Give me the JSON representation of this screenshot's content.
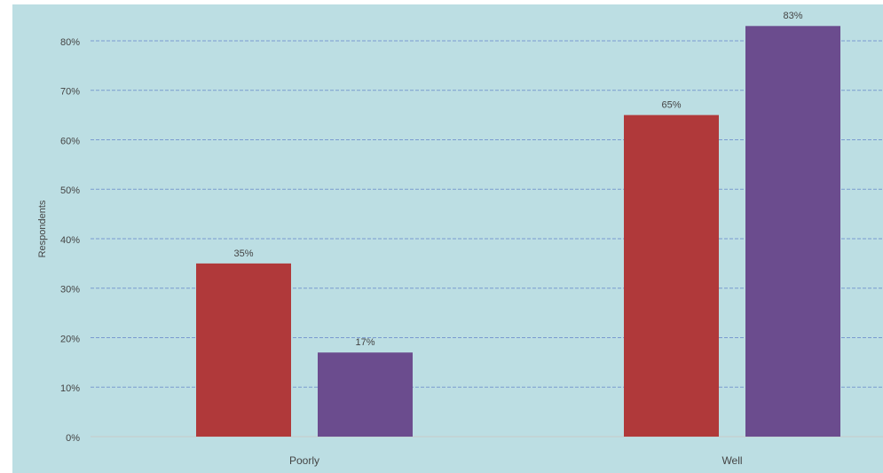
{
  "chart_data": {
    "type": "bar",
    "y_label": "Respondents",
    "categories": [
      "Poorly",
      "Well"
    ],
    "series": [
      {
        "color": "#b0393a",
        "values": [
          35,
          65
        ],
        "value_labels": [
          "35%",
          "65%"
        ]
      },
      {
        "color": "#6b4c8e",
        "values": [
          17,
          83
        ],
        "value_labels": [
          "17%",
          "83%"
        ]
      }
    ],
    "ylim": [
      0,
      87
    ],
    "yticks": [
      {
        "value": 0,
        "label": "0%"
      },
      {
        "value": 10,
        "label": "10%"
      },
      {
        "value": 20,
        "label": "20%"
      },
      {
        "value": 30,
        "label": "30%"
      },
      {
        "value": 40,
        "label": "40%"
      },
      {
        "value": 50,
        "label": "50%"
      },
      {
        "value": 60,
        "label": "60%"
      },
      {
        "value": 70,
        "label": "70%"
      },
      {
        "value": 80,
        "label": "80%"
      }
    ],
    "grid": true
  }
}
